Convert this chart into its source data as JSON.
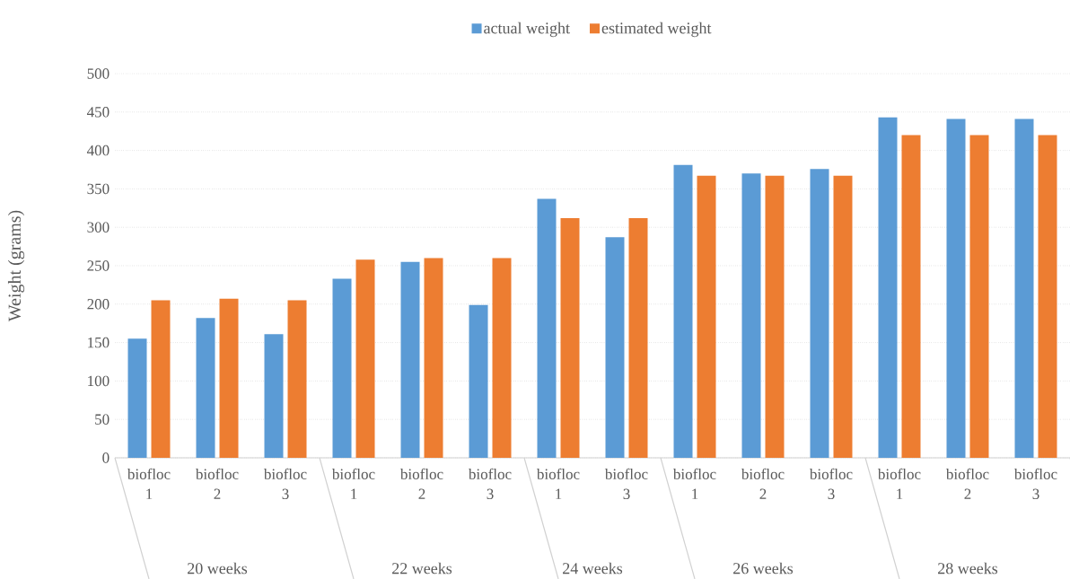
{
  "chart_data": {
    "type": "bar",
    "ylabel": "Weight (grams)",
    "categories": [
      "biofloc 1",
      "biofloc 2",
      "biofloc 3",
      "biofloc 1",
      "biofloc 2",
      "biofloc 3",
      "biofloc 1",
      "biofloc 3",
      "biofloc 1",
      "biofloc 2",
      "biofloc 3",
      "biofloc 1",
      "biofloc 2",
      "biofloc 3"
    ],
    "series": [
      {
        "name": "actual weight",
        "color": "#5b9bd5",
        "values": [
          155,
          182,
          161,
          233,
          255,
          199,
          337,
          287,
          381,
          370,
          376,
          443,
          441,
          441
        ]
      },
      {
        "name": "estimated weight",
        "color": "#ed7d31",
        "values": [
          205,
          207,
          205,
          258,
          260,
          260,
          312,
          312,
          367,
          367,
          367,
          420,
          420,
          420
        ]
      }
    ],
    "annotations": [
      "20 weeks",
      "22 weeks",
      "24 weeks",
      "26 weeks",
      "28 weeks"
    ],
    "ylim": [
      0,
      500
    ],
    "yticks": [
      0,
      50,
      100,
      150,
      200,
      250,
      300,
      350,
      400,
      450,
      500
    ],
    "grid": "y",
    "legend": "top"
  }
}
